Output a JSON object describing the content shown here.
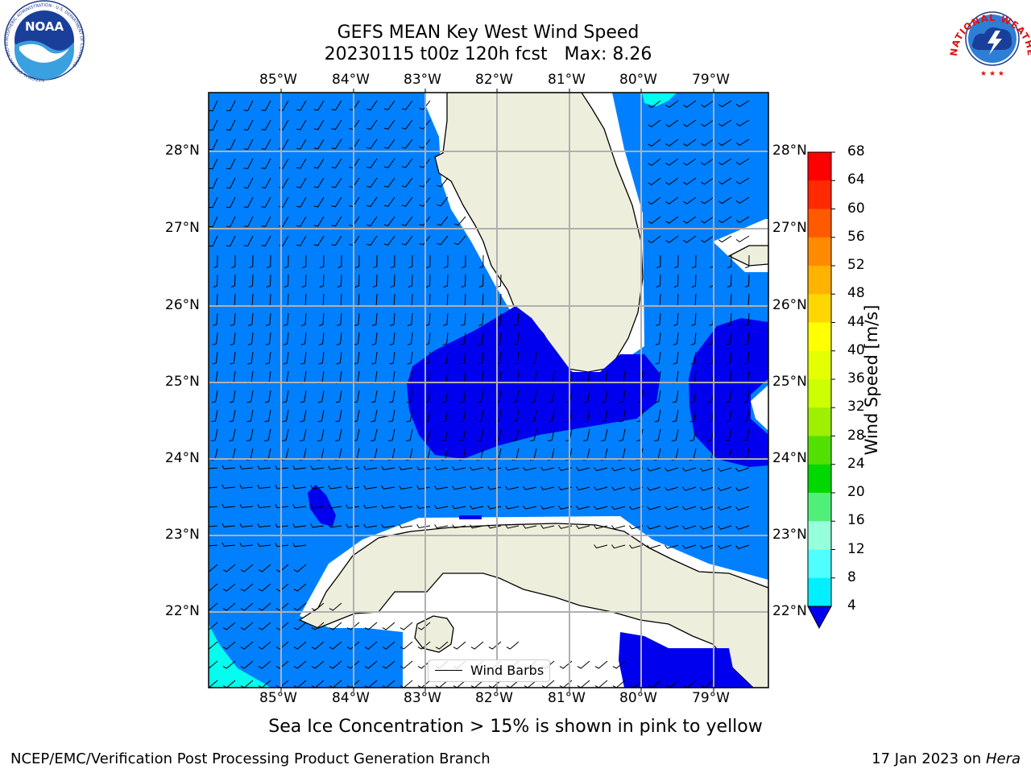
{
  "title_line1": "GEFS MEAN Key West Wind Speed",
  "title_line2": "20230115 t00z 120h fcst   Max: 8.26",
  "lon_labels": [
    "85°W",
    "84°W",
    "83°W",
    "82°W",
    "81°W",
    "80°W",
    "79°W"
  ],
  "lat_labels": [
    "28°N",
    "27°N",
    "26°N",
    "25°N",
    "24°N",
    "23°N",
    "22°N"
  ],
  "colorbar": {
    "label": "Wind Speed [m/s]",
    "ticks": [
      "68",
      "64",
      "60",
      "56",
      "52",
      "48",
      "44",
      "40",
      "36",
      "32",
      "28",
      "24",
      "20",
      "16",
      "12",
      "8",
      "4"
    ],
    "colors": [
      "#ff0000",
      "#ff2a00",
      "#ff5a00",
      "#ff8a00",
      "#ffb300",
      "#ffd700",
      "#ffff00",
      "#e6ff00",
      "#cdff00",
      "#9cf000",
      "#52e000",
      "#00d800",
      "#50f078",
      "#96ffdc",
      "#50ffff",
      "#00f0ff",
      "#0080ff"
    ],
    "under_color": "#0000ee"
  },
  "legend_label": "Wind Barbs",
  "sea_ice_note": "Sea Ice Concentration > 15% is shown in pink to yellow",
  "footer_left": "NCEP/EMC/Verification Post Processing Product Generation Branch",
  "footer_date": "17 Jan 2023 on ",
  "footer_host": "Hera",
  "noaa_logo_text": "NOAA",
  "noaa_ring_text": "NATIONAL OCEANIC AND ATMOSPHERIC ADMINISTRATION · U.S. DEPARTMENT OF COMMERCE",
  "nws_ring_text": "NATIONAL WEATHER SERVICE",
  "colors": {
    "ocean_light": "#0080ff",
    "ocean_dark": "#0000ee",
    "cyan": "#00ffee",
    "land": "#eeeedc"
  }
}
